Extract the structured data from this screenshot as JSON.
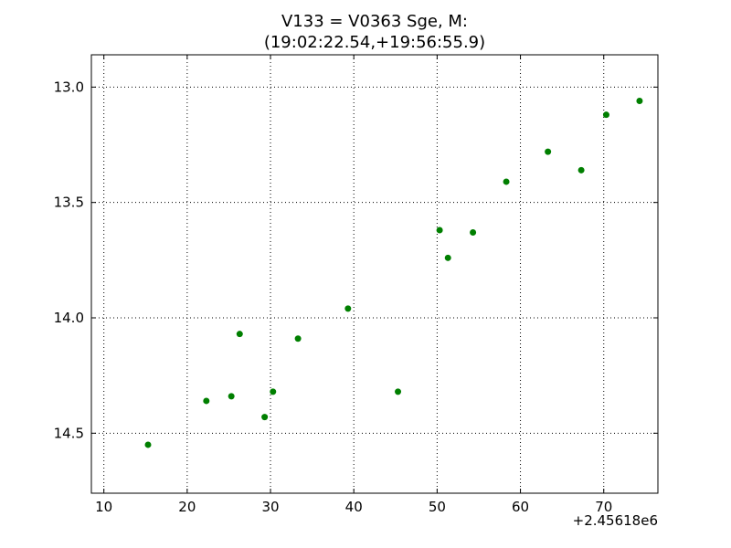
{
  "chart_data": {
    "type": "scatter",
    "title_line1": "V133 = V0363 Sge, M:",
    "title_line2": "(19:02:22.54,+19:56:55.9)",
    "xlabel": "",
    "ylabel": "",
    "x_offset_label": "+2.45618e6",
    "xlim": [
      8.5,
      76.5
    ],
    "ylim": [
      14.76,
      12.86
    ],
    "y_inverted": true,
    "grid": true,
    "point_color": "#007f00",
    "x_ticks": [
      10,
      20,
      30,
      40,
      50,
      60,
      70
    ],
    "x_tick_labels": [
      "10",
      "20",
      "30",
      "40",
      "50",
      "60",
      "70"
    ],
    "y_ticks": [
      13.0,
      13.5,
      14.0,
      14.5
    ],
    "y_tick_labels": [
      "13.0",
      "13.5",
      "14.0",
      "14.5"
    ],
    "x": [
      15.3,
      22.3,
      25.3,
      26.3,
      29.3,
      30.3,
      33.3,
      39.3,
      45.3,
      50.3,
      51.3,
      54.3,
      58.3,
      63.3,
      67.3,
      70.3,
      74.3
    ],
    "y": [
      14.55,
      14.36,
      14.34,
      14.07,
      14.43,
      14.32,
      14.09,
      13.96,
      14.32,
      13.62,
      13.74,
      13.63,
      13.41,
      13.28,
      13.36,
      13.12,
      13.06
    ]
  }
}
